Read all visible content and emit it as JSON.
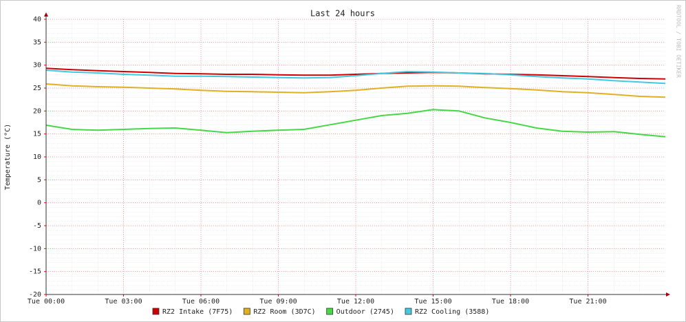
{
  "chart_data": {
    "type": "line",
    "title": "Last 24 hours",
    "y_label": "Temperature (°C)",
    "credit": "RRDTOOL / TOBI OETIKER",
    "x": [
      0,
      1,
      2,
      3,
      4,
      5,
      6,
      7,
      8,
      9,
      10,
      11,
      12,
      13,
      14,
      15,
      16,
      17,
      18,
      19,
      20,
      21,
      22,
      23,
      24
    ],
    "xlim": [
      0,
      24
    ],
    "xticks": [
      {
        "value": 0,
        "label": "Tue 00:00"
      },
      {
        "value": 3,
        "label": "Tue 03:00"
      },
      {
        "value": 6,
        "label": "Tue 06:00"
      },
      {
        "value": 9,
        "label": "Tue 09:00"
      },
      {
        "value": 12,
        "label": "Tue 12:00"
      },
      {
        "value": 15,
        "label": "Tue 15:00"
      },
      {
        "value": 18,
        "label": "Tue 18:00"
      },
      {
        "value": 21,
        "label": "Tue 21:00"
      }
    ],
    "ylim": [
      -20,
      40
    ],
    "yticks": [
      -20,
      -15,
      -10,
      -5,
      0,
      5,
      10,
      15,
      20,
      25,
      30,
      35,
      40
    ],
    "grid": true,
    "legend": "bottom",
    "series": [
      {
        "name": "RZ2 Intake (7F75)",
        "color": "#cc0000",
        "values": [
          29.3,
          29.0,
          28.8,
          28.6,
          28.4,
          28.2,
          28.1,
          28.0,
          28.0,
          27.9,
          27.8,
          27.8,
          28.0,
          28.2,
          28.3,
          28.4,
          28.3,
          28.1,
          28.0,
          27.9,
          27.7,
          27.5,
          27.3,
          27.1,
          27.0
        ]
      },
      {
        "name": "RZ2 Room (3D7C)",
        "color": "#e0b020",
        "values": [
          25.9,
          25.5,
          25.3,
          25.2,
          25.0,
          24.8,
          24.5,
          24.3,
          24.2,
          24.1,
          24.0,
          24.2,
          24.5,
          25.0,
          25.4,
          25.5,
          25.4,
          25.1,
          24.9,
          24.6,
          24.2,
          24.0,
          23.6,
          23.2,
          23.0
        ]
      },
      {
        "name": "Outdoor (2745)",
        "color": "#44d844",
        "values": [
          16.9,
          16.0,
          15.8,
          16.0,
          16.2,
          16.3,
          15.8,
          15.3,
          15.6,
          15.8,
          16.0,
          17.0,
          18.0,
          19.0,
          19.5,
          20.3,
          20.0,
          18.5,
          17.5,
          16.3,
          15.6,
          15.4,
          15.5,
          14.9,
          14.4
        ]
      },
      {
        "name": "RZ2 Cooling (3588)",
        "color": "#44c8e0",
        "values": [
          28.9,
          28.5,
          28.3,
          28.0,
          27.8,
          27.6,
          27.6,
          27.5,
          27.4,
          27.3,
          27.2,
          27.3,
          27.7,
          28.2,
          28.6,
          28.5,
          28.3,
          28.2,
          27.9,
          27.5,
          27.2,
          27.0,
          26.6,
          26.3,
          26.0
        ]
      }
    ]
  }
}
